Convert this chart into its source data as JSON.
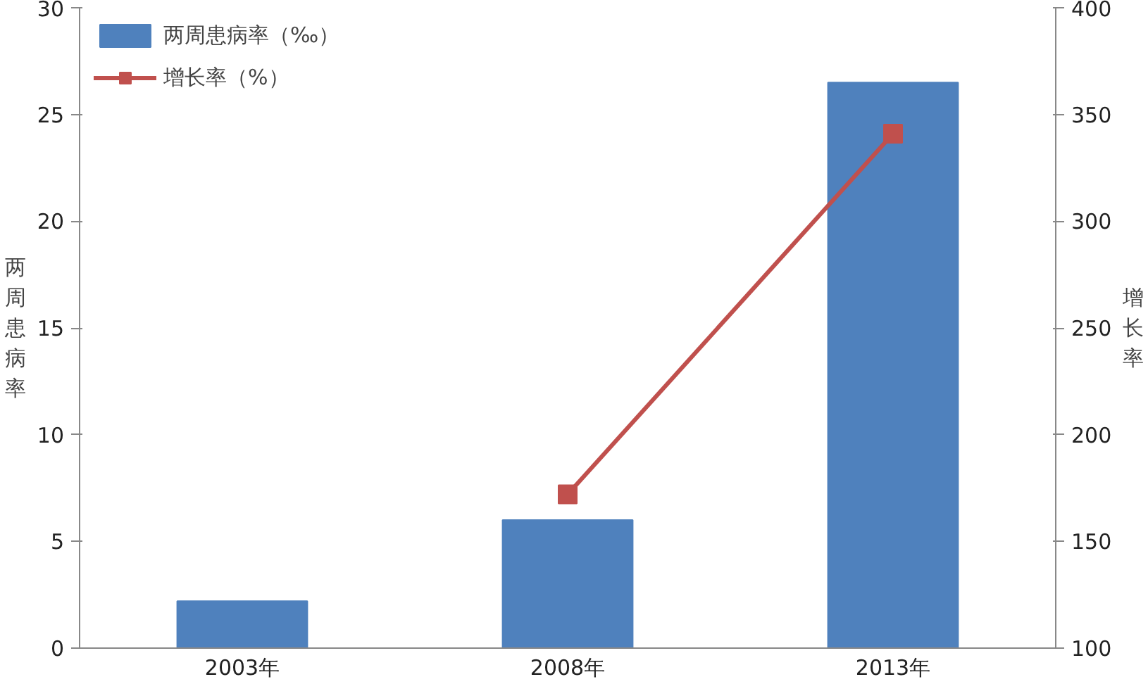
{
  "chart_data": {
    "type": "bar",
    "categories": [
      "2003年",
      "2008年",
      "2013年"
    ],
    "ylabel": "两周患病率",
    "y2label": "增长率",
    "ylim": [
      0,
      30
    ],
    "yticks": [
      0,
      5,
      10,
      15,
      20,
      25,
      30
    ],
    "y2lim": [
      100,
      400
    ],
    "y2ticks": [
      100,
      150,
      200,
      250,
      300,
      350,
      400
    ],
    "grid": false,
    "legend": "top left",
    "series": [
      {
        "name": "两周患病率（‰）",
        "color": "#4f81bd",
        "values": [
          2.2,
          6.0,
          26.5
        ]
      },
      {
        "name": "增长率（%）",
        "type": "line",
        "axis": "y2",
        "color": "#c0504d",
        "marker": "square",
        "values": [
          null,
          172,
          341
        ]
      }
    ]
  }
}
